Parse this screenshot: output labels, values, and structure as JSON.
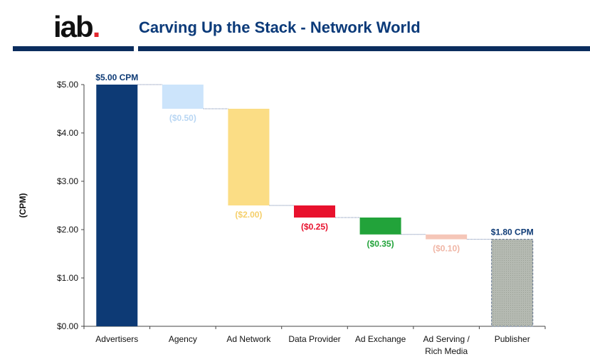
{
  "header": {
    "logo_text": "iab",
    "logo_dot": ".",
    "title": "Carving Up the Stack -  Network World"
  },
  "chart_data": {
    "type": "waterfall",
    "title": "",
    "xlabel": "",
    "ylabel": "(CPM)",
    "ylim": [
      0,
      5
    ],
    "y_ticks": [
      "$0.00",
      "$1.00",
      "$2.00",
      "$3.00",
      "$4.00",
      "$5.00"
    ],
    "y_tick_values": [
      0,
      1,
      2,
      3,
      4,
      5
    ],
    "categories": [
      "Advertisers",
      "Agency",
      "Ad Network",
      "Data Provider",
      "Ad Exchange",
      "Ad Serving / Rich Media",
      "Publisher"
    ],
    "bars": [
      {
        "category": "Advertisers",
        "kind": "total",
        "start": 0,
        "end": 5.0,
        "label": "$5.00 CPM",
        "color": "#0d3a75"
      },
      {
        "category": "Agency",
        "kind": "delta",
        "start": 5.0,
        "end": 4.5,
        "value": -0.5,
        "label": "($0.50)",
        "color": "#cce4fb"
      },
      {
        "category": "Ad Network",
        "kind": "delta",
        "start": 4.5,
        "end": 2.5,
        "value": -2.0,
        "label": "($2.00)",
        "color": "#fbdd85"
      },
      {
        "category": "Data Provider",
        "kind": "delta",
        "start": 2.5,
        "end": 2.25,
        "value": -0.25,
        "label": "($0.25)",
        "color": "#e8112d"
      },
      {
        "category": "Ad Exchange",
        "kind": "delta",
        "start": 2.25,
        "end": 1.9,
        "value": -0.35,
        "label": "($0.35)",
        "color": "#22a33a"
      },
      {
        "category": "Ad Serving / Rich Media",
        "kind": "delta",
        "start": 1.9,
        "end": 1.8,
        "value": -0.1,
        "label": "($0.10)",
        "color": "#f5c6b8"
      },
      {
        "category": "Publisher",
        "kind": "total",
        "start": 0,
        "end": 1.8,
        "label": "$1.80 CPM",
        "color": "#b5bab2"
      }
    ],
    "grid": false,
    "legend": "none"
  }
}
